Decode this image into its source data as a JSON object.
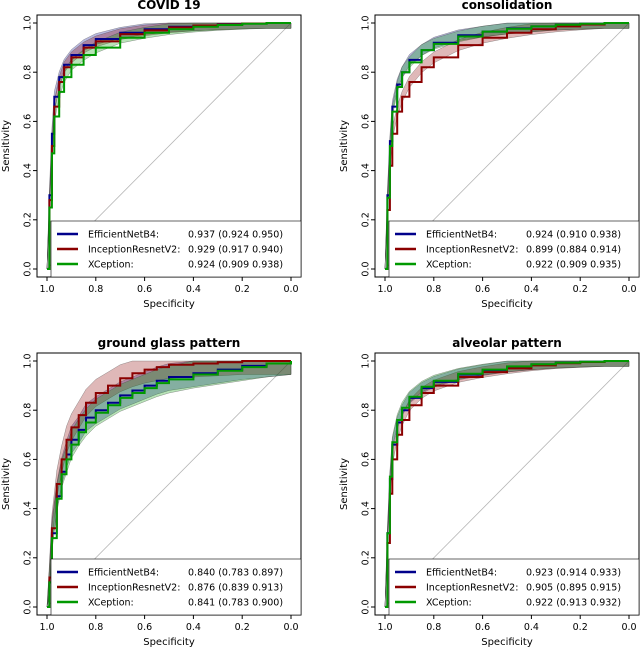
{
  "chart_data": [
    {
      "type": "line",
      "title": "COVID 19",
      "xlabel": "Specificity",
      "ylabel": "Sensitivity",
      "x_reversed": true,
      "xlim": [
        1.0,
        0.0
      ],
      "ylim": [
        0.0,
        1.0
      ],
      "xticks": [
        "1.0",
        "0.8",
        "0.6",
        "0.4",
        "0.2",
        "0.0"
      ],
      "yticks": [
        "0.0",
        "0.2",
        "0.4",
        "0.6",
        "0.8",
        "1.0"
      ],
      "legend_position": "bottom-right",
      "series": [
        {
          "name": "EfficientNetB4:",
          "auc": "0.937 (0.924 0.950)",
          "color": "#00008b",
          "x": [
            1.0,
            0.99,
            0.98,
            0.97,
            0.95,
            0.93,
            0.9,
            0.85,
            0.8,
            0.7,
            0.6,
            0.5,
            0.4,
            0.3,
            0.2,
            0.1,
            0.0
          ],
          "y": [
            0.0,
            0.3,
            0.55,
            0.7,
            0.78,
            0.83,
            0.87,
            0.91,
            0.935,
            0.96,
            0.975,
            0.985,
            0.99,
            0.995,
            0.998,
            1.0,
            1.0
          ]
        },
        {
          "name": "InceptionResnetV2:",
          "auc": "0.929 (0.917 0.940)",
          "color": "#8b0000",
          "x": [
            1.0,
            0.99,
            0.98,
            0.97,
            0.95,
            0.93,
            0.9,
            0.85,
            0.8,
            0.7,
            0.6,
            0.5,
            0.4,
            0.3,
            0.2,
            0.1,
            0.0
          ],
          "y": [
            0.0,
            0.28,
            0.5,
            0.66,
            0.76,
            0.82,
            0.86,
            0.9,
            0.925,
            0.955,
            0.97,
            0.982,
            0.99,
            0.994,
            0.998,
            1.0,
            1.0
          ]
        },
        {
          "name": "XCeption:",
          "auc": "0.924 (0.909 0.938)",
          "color": "#009900",
          "x": [
            1.0,
            0.99,
            0.98,
            0.97,
            0.95,
            0.93,
            0.9,
            0.85,
            0.8,
            0.7,
            0.6,
            0.5,
            0.4,
            0.3,
            0.2,
            0.1,
            0.0
          ],
          "y": [
            0.0,
            0.25,
            0.47,
            0.62,
            0.72,
            0.78,
            0.83,
            0.87,
            0.9,
            0.94,
            0.96,
            0.975,
            0.985,
            0.992,
            0.997,
            1.0,
            1.0
          ]
        }
      ]
    },
    {
      "type": "line",
      "title": "consolidation",
      "xlabel": "Specificity",
      "ylabel": "Sensitivity",
      "x_reversed": true,
      "xlim": [
        1.0,
        0.0
      ],
      "ylim": [
        0.0,
        1.0
      ],
      "xticks": [
        "1.0",
        "0.8",
        "0.6",
        "0.4",
        "0.2",
        "0.0"
      ],
      "yticks": [
        "0.0",
        "0.2",
        "0.4",
        "0.6",
        "0.8",
        "1.0"
      ],
      "legend_position": "bottom-right",
      "series": [
        {
          "name": "EfficientNetB4:",
          "auc": "0.924 (0.910 0.938)",
          "color": "#00008b",
          "x": [
            1.0,
            0.99,
            0.98,
            0.97,
            0.95,
            0.93,
            0.9,
            0.85,
            0.8,
            0.7,
            0.6,
            0.5,
            0.4,
            0.3,
            0.2,
            0.1,
            0.0
          ],
          "y": [
            0.0,
            0.3,
            0.52,
            0.66,
            0.75,
            0.8,
            0.85,
            0.89,
            0.92,
            0.95,
            0.965,
            0.978,
            0.986,
            0.993,
            0.997,
            1.0,
            1.0
          ]
        },
        {
          "name": "InceptionResnetV2:",
          "auc": "0.899 (0.884 0.914)",
          "color": "#8b0000",
          "x": [
            1.0,
            0.99,
            0.98,
            0.97,
            0.95,
            0.93,
            0.9,
            0.85,
            0.8,
            0.7,
            0.6,
            0.5,
            0.4,
            0.3,
            0.2,
            0.1,
            0.0
          ],
          "y": [
            0.0,
            0.24,
            0.42,
            0.55,
            0.64,
            0.7,
            0.76,
            0.82,
            0.86,
            0.91,
            0.94,
            0.96,
            0.975,
            0.986,
            0.994,
            1.0,
            1.0
          ]
        },
        {
          "name": "XCeption:",
          "auc": "0.922 (0.909 0.935)",
          "color": "#009900",
          "x": [
            1.0,
            0.99,
            0.98,
            0.97,
            0.95,
            0.93,
            0.9,
            0.85,
            0.8,
            0.7,
            0.6,
            0.5,
            0.4,
            0.3,
            0.2,
            0.1,
            0.0
          ],
          "y": [
            0.0,
            0.29,
            0.5,
            0.64,
            0.74,
            0.8,
            0.84,
            0.89,
            0.915,
            0.945,
            0.965,
            0.977,
            0.986,
            0.993,
            0.997,
            1.0,
            1.0
          ]
        }
      ]
    },
    {
      "type": "line",
      "title": "ground glass pattern",
      "xlabel": "Specificity",
      "ylabel": "Sensitivity",
      "x_reversed": true,
      "xlim": [
        1.0,
        0.0
      ],
      "ylim": [
        0.0,
        1.0
      ],
      "xticks": [
        "1.0",
        "0.8",
        "0.6",
        "0.4",
        "0.2",
        "0.0"
      ],
      "yticks": [
        "0.0",
        "0.2",
        "0.4",
        "0.6",
        "0.8",
        "1.0"
      ],
      "legend_position": "bottom-right",
      "series": [
        {
          "name": "EfficientNetB4:",
          "auc": "0.840 (0.783 0.897)",
          "color": "#00008b",
          "x": [
            1.0,
            0.99,
            0.98,
            0.96,
            0.94,
            0.92,
            0.9,
            0.87,
            0.84,
            0.8,
            0.75,
            0.7,
            0.65,
            0.6,
            0.55,
            0.5,
            0.4,
            0.3,
            0.2,
            0.1,
            0.0
          ],
          "y": [
            0.0,
            0.1,
            0.3,
            0.45,
            0.55,
            0.62,
            0.68,
            0.72,
            0.77,
            0.8,
            0.83,
            0.86,
            0.88,
            0.9,
            0.92,
            0.935,
            0.95,
            0.965,
            0.98,
            0.99,
            1.0
          ]
        },
        {
          "name": "InceptionResnetV2:",
          "auc": "0.876 (0.839 0.913)",
          "color": "#8b0000",
          "x": [
            1.0,
            0.99,
            0.98,
            0.96,
            0.94,
            0.92,
            0.9,
            0.87,
            0.84,
            0.8,
            0.75,
            0.7,
            0.65,
            0.6,
            0.55,
            0.5,
            0.4,
            0.3,
            0.2,
            0.1,
            0.0
          ],
          "y": [
            0.0,
            0.12,
            0.32,
            0.5,
            0.6,
            0.68,
            0.73,
            0.78,
            0.83,
            0.87,
            0.9,
            0.93,
            0.95,
            0.965,
            0.975,
            0.985,
            0.99,
            0.995,
            1.0,
            1.0,
            1.0
          ]
        },
        {
          "name": "XCeption:",
          "auc": "0.841 (0.783 0.900)",
          "color": "#009900",
          "x": [
            1.0,
            0.99,
            0.98,
            0.96,
            0.94,
            0.92,
            0.9,
            0.87,
            0.84,
            0.8,
            0.75,
            0.7,
            0.65,
            0.6,
            0.55,
            0.5,
            0.4,
            0.3,
            0.2,
            0.1,
            0.0
          ],
          "y": [
            0.0,
            0.1,
            0.28,
            0.44,
            0.54,
            0.6,
            0.66,
            0.71,
            0.75,
            0.79,
            0.82,
            0.85,
            0.87,
            0.89,
            0.91,
            0.925,
            0.945,
            0.96,
            0.975,
            0.99,
            1.0
          ]
        }
      ]
    },
    {
      "type": "line",
      "title": "alveolar pattern",
      "xlabel": "Specificity",
      "ylabel": "Sensitivity",
      "x_reversed": true,
      "xlim": [
        1.0,
        0.0
      ],
      "ylim": [
        0.0,
        1.0
      ],
      "xticks": [
        "1.0",
        "0.8",
        "0.6",
        "0.4",
        "0.2",
        "0.0"
      ],
      "yticks": [
        "0.0",
        "0.2",
        "0.4",
        "0.6",
        "0.8",
        "1.0"
      ],
      "legend_position": "bottom-right",
      "series": [
        {
          "name": "EfficientNetB4:",
          "auc": "0.923 (0.914 0.933)",
          "color": "#00008b",
          "x": [
            1.0,
            0.99,
            0.98,
            0.97,
            0.95,
            0.93,
            0.9,
            0.85,
            0.8,
            0.7,
            0.6,
            0.5,
            0.4,
            0.3,
            0.2,
            0.1,
            0.0
          ],
          "y": [
            0.0,
            0.3,
            0.52,
            0.66,
            0.75,
            0.8,
            0.85,
            0.89,
            0.915,
            0.945,
            0.963,
            0.977,
            0.986,
            0.993,
            0.997,
            1.0,
            1.0
          ]
        },
        {
          "name": "InceptionResnetV2:",
          "auc": "0.905 (0.895 0.915)",
          "color": "#8b0000",
          "x": [
            1.0,
            0.99,
            0.98,
            0.97,
            0.95,
            0.93,
            0.9,
            0.85,
            0.8,
            0.7,
            0.6,
            0.5,
            0.4,
            0.3,
            0.2,
            0.1,
            0.0
          ],
          "y": [
            0.0,
            0.26,
            0.46,
            0.6,
            0.7,
            0.76,
            0.82,
            0.87,
            0.9,
            0.935,
            0.955,
            0.97,
            0.982,
            0.991,
            0.996,
            1.0,
            1.0
          ]
        },
        {
          "name": "XCeption:",
          "auc": "0.922 (0.913 0.932)",
          "color": "#009900",
          "x": [
            1.0,
            0.99,
            0.98,
            0.97,
            0.95,
            0.93,
            0.9,
            0.85,
            0.8,
            0.7,
            0.6,
            0.5,
            0.4,
            0.3,
            0.2,
            0.1,
            0.0
          ],
          "y": [
            0.0,
            0.3,
            0.53,
            0.67,
            0.76,
            0.81,
            0.855,
            0.895,
            0.92,
            0.948,
            0.965,
            0.978,
            0.987,
            0.993,
            0.997,
            1.0,
            1.0
          ]
        }
      ]
    }
  ]
}
